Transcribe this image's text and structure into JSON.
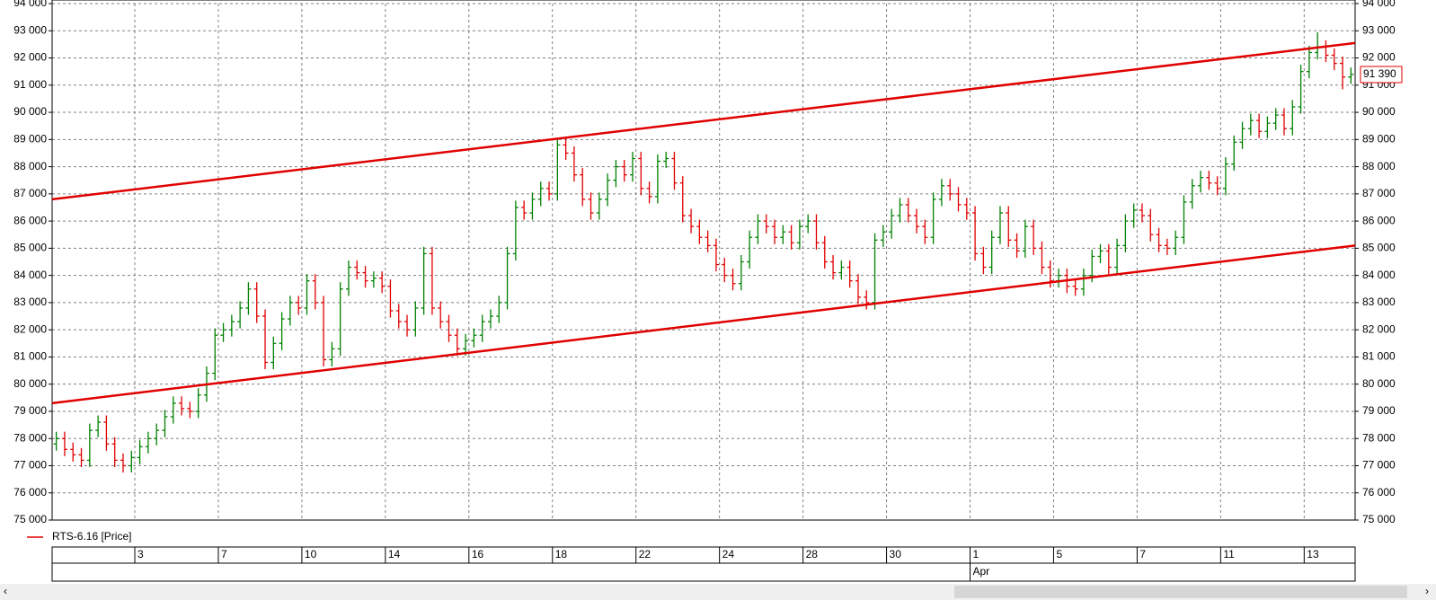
{
  "chart_data": {
    "type": "ohlc",
    "legend": {
      "label": "RTS-6.16 [Price]",
      "color": "#e00000"
    },
    "up_color": "#008000",
    "down_color": "#e00000",
    "grid": true,
    "xlim": [
      -0.5,
      155.5
    ],
    "ylim": [
      75000,
      94000
    ],
    "yticks": [
      {
        "value": 75000,
        "label": "75 000"
      },
      {
        "value": 76000,
        "label": "76 000"
      },
      {
        "value": 77000,
        "label": "77 000"
      },
      {
        "value": 78000,
        "label": "78 000"
      },
      {
        "value": 79000,
        "label": "79 000"
      },
      {
        "value": 80000,
        "label": "80 000"
      },
      {
        "value": 81000,
        "label": "81 000"
      },
      {
        "value": 82000,
        "label": "82 000"
      },
      {
        "value": 83000,
        "label": "83 000"
      },
      {
        "value": 84000,
        "label": "84 000"
      },
      {
        "value": 85000,
        "label": "85 000"
      },
      {
        "value": 86000,
        "label": "86 000"
      },
      {
        "value": 87000,
        "label": "87 000"
      },
      {
        "value": 88000,
        "label": "88 000"
      },
      {
        "value": 89000,
        "label": "89 000"
      },
      {
        "value": 90000,
        "label": "90 000"
      },
      {
        "value": 91000,
        "label": "91 000"
      },
      {
        "value": 92000,
        "label": "92 000"
      },
      {
        "value": 93000,
        "label": "93 000"
      },
      {
        "value": 94000,
        "label": "94 000"
      }
    ],
    "xticks": [
      {
        "value": 9.4,
        "label": "3"
      },
      {
        "value": 19.4,
        "label": "7"
      },
      {
        "value": 29.4,
        "label": "10"
      },
      {
        "value": 39.4,
        "label": "14"
      },
      {
        "value": 49.4,
        "label": "16"
      },
      {
        "value": 59.4,
        "label": "18"
      },
      {
        "value": 69.4,
        "label": "22"
      },
      {
        "value": 79.4,
        "label": "24"
      },
      {
        "value": 89.4,
        "label": "28"
      },
      {
        "value": 99.4,
        "label": "30"
      },
      {
        "value": 109.4,
        "label": "1"
      },
      {
        "value": 119.4,
        "label": "5"
      },
      {
        "value": 129.4,
        "label": "7"
      },
      {
        "value": 139.4,
        "label": "11"
      },
      {
        "value": 149.4,
        "label": "13"
      }
    ],
    "month_ticks": [
      {
        "value": 109.4,
        "label": "Apr"
      }
    ],
    "last_price": {
      "value": 91390,
      "label": "91 390"
    },
    "trend_lines": [
      {
        "color": "#e00000",
        "x": [
          -0.5,
          155.5
        ],
        "y": [
          86800,
          92550
        ]
      },
      {
        "color": "#e00000",
        "x": [
          -0.5,
          155.5
        ],
        "y": [
          79300,
          85100
        ]
      }
    ],
    "ohlc": [
      [
        77800,
        78250,
        77550,
        78000
      ],
      [
        78000,
        78250,
        77350,
        77600
      ],
      [
        77600,
        77850,
        77150,
        77400
      ],
      [
        77400,
        77650,
        76950,
        77200
      ],
      [
        77200,
        78550,
        76950,
        78300
      ],
      [
        78300,
        78850,
        78050,
        78600
      ],
      [
        78600,
        78850,
        77550,
        77800
      ],
      [
        77800,
        78050,
        76950,
        77200
      ],
      [
        77200,
        77450,
        76750,
        77000
      ],
      [
        77000,
        77550,
        76750,
        77300
      ],
      [
        77300,
        77950,
        77050,
        77700
      ],
      [
        77700,
        78250,
        77450,
        78000
      ],
      [
        78000,
        78550,
        77750,
        78300
      ],
      [
        78300,
        79050,
        78050,
        78800
      ],
      [
        78800,
        79550,
        78550,
        79300
      ],
      [
        79300,
        79550,
        78850,
        79100
      ],
      [
        79100,
        79350,
        78750,
        79000
      ],
      [
        79000,
        79850,
        78750,
        79600
      ],
      [
        79600,
        80650,
        79350,
        80400
      ],
      [
        80400,
        82050,
        80150,
        81800
      ],
      [
        81800,
        82250,
        81550,
        82000
      ],
      [
        82000,
        82550,
        81750,
        82300
      ],
      [
        82300,
        83050,
        82050,
        82800
      ],
      [
        82800,
        83750,
        82550,
        83500
      ],
      [
        83500,
        83750,
        82250,
        82500
      ],
      [
        82500,
        82750,
        80550,
        80800
      ],
      [
        80800,
        81750,
        80550,
        81500
      ],
      [
        81500,
        82650,
        81250,
        82400
      ],
      [
        82400,
        83250,
        82150,
        83000
      ],
      [
        83000,
        83250,
        82550,
        82800
      ],
      [
        82800,
        84050,
        82550,
        83800
      ],
      [
        83800,
        84050,
        82750,
        83000
      ],
      [
        83000,
        83250,
        80650,
        80900
      ],
      [
        80900,
        81550,
        80650,
        81300
      ],
      [
        81300,
        83750,
        81050,
        83500
      ],
      [
        83500,
        84550,
        83250,
        84300
      ],
      [
        84300,
        84550,
        83850,
        84100
      ],
      [
        84100,
        84350,
        83550,
        83800
      ],
      [
        83800,
        84150,
        83550,
        83900
      ],
      [
        83900,
        84150,
        83350,
        83600
      ],
      [
        83600,
        83850,
        82450,
        82700
      ],
      [
        82700,
        82950,
        82050,
        82300
      ],
      [
        82300,
        82550,
        81750,
        82000
      ],
      [
        82000,
        83050,
        81750,
        82800
      ],
      [
        82800,
        85050,
        82550,
        84800
      ],
      [
        84800,
        85050,
        82550,
        82800
      ],
      [
        82800,
        83050,
        82050,
        82300
      ],
      [
        82300,
        82550,
        81550,
        81800
      ],
      [
        81800,
        82050,
        81050,
        81300
      ],
      [
        81300,
        81850,
        81050,
        81600
      ],
      [
        81600,
        82050,
        81350,
        81800
      ],
      [
        81800,
        82550,
        81550,
        82300
      ],
      [
        82300,
        82750,
        82050,
        82500
      ],
      [
        82500,
        83250,
        82250,
        83000
      ],
      [
        83000,
        85050,
        82750,
        84800
      ],
      [
        84800,
        86750,
        84550,
        86500
      ],
      [
        86500,
        86750,
        86050,
        86300
      ],
      [
        86300,
        87050,
        86050,
        86800
      ],
      [
        86800,
        87450,
        86550,
        87200
      ],
      [
        87200,
        87450,
        86750,
        87000
      ],
      [
        87000,
        89050,
        86750,
        88800
      ],
      [
        88800,
        89050,
        88250,
        88500
      ],
      [
        88500,
        88750,
        87450,
        87700
      ],
      [
        87700,
        87950,
        86550,
        86800
      ],
      [
        86800,
        87050,
        86050,
        86300
      ],
      [
        86300,
        87050,
        86050,
        86800
      ],
      [
        86800,
        87750,
        86550,
        87500
      ],
      [
        87500,
        88250,
        87250,
        88000
      ],
      [
        88000,
        88250,
        87450,
        87700
      ],
      [
        87700,
        88550,
        87450,
        88300
      ],
      [
        88300,
        88550,
        86950,
        87200
      ],
      [
        87200,
        87450,
        86650,
        86900
      ],
      [
        86900,
        88450,
        86650,
        88200
      ],
      [
        88200,
        88550,
        87950,
        88300
      ],
      [
        88300,
        88550,
        87150,
        87400
      ],
      [
        87400,
        87650,
        85950,
        86200
      ],
      [
        86200,
        86450,
        85550,
        85800
      ],
      [
        85800,
        86050,
        85150,
        85400
      ],
      [
        85400,
        85650,
        84850,
        85100
      ],
      [
        85100,
        85350,
        84150,
        84400
      ],
      [
        84400,
        84650,
        83750,
        84000
      ],
      [
        84000,
        84250,
        83450,
        83700
      ],
      [
        83700,
        84750,
        83450,
        84500
      ],
      [
        84500,
        85650,
        84250,
        85400
      ],
      [
        85400,
        86250,
        85150,
        86000
      ],
      [
        86000,
        86250,
        85550,
        85800
      ],
      [
        85800,
        86050,
        85150,
        85400
      ],
      [
        85400,
        85850,
        85150,
        85600
      ],
      [
        85600,
        85850,
        84950,
        85200
      ],
      [
        85200,
        86050,
        84950,
        85800
      ],
      [
        85800,
        86250,
        85550,
        86000
      ],
      [
        86000,
        86250,
        84950,
        85200
      ],
      [
        85200,
        85450,
        84250,
        84500
      ],
      [
        84500,
        84750,
        83850,
        84100
      ],
      [
        84100,
        84550,
        83850,
        84300
      ],
      [
        84300,
        84550,
        83550,
        83800
      ],
      [
        83800,
        84050,
        82950,
        83200
      ],
      [
        83200,
        83450,
        82750,
        83000
      ],
      [
        83000,
        85550,
        82750,
        85300
      ],
      [
        85300,
        85850,
        85050,
        85600
      ],
      [
        85600,
        86450,
        85350,
        86200
      ],
      [
        86200,
        86850,
        85950,
        86600
      ],
      [
        86600,
        86850,
        85950,
        86200
      ],
      [
        86200,
        86450,
        85550,
        85800
      ],
      [
        85800,
        86050,
        85150,
        85400
      ],
      [
        85400,
        87050,
        85150,
        86800
      ],
      [
        86800,
        87550,
        86550,
        87300
      ],
      [
        87300,
        87550,
        86750,
        87000
      ],
      [
        87000,
        87250,
        86350,
        86600
      ],
      [
        86600,
        86850,
        86050,
        86300
      ],
      [
        86300,
        86550,
        84550,
        84800
      ],
      [
        84800,
        85050,
        84050,
        84300
      ],
      [
        84300,
        85650,
        84050,
        85400
      ],
      [
        85400,
        86550,
        85150,
        86300
      ],
      [
        86300,
        86550,
        85050,
        85300
      ],
      [
        85300,
        85550,
        84650,
        84900
      ],
      [
        84900,
        86050,
        84650,
        85800
      ],
      [
        85800,
        86050,
        84750,
        85000
      ],
      [
        85000,
        85250,
        84050,
        84300
      ],
      [
        84300,
        84550,
        83550,
        83800
      ],
      [
        83800,
        84250,
        83550,
        84000
      ],
      [
        84000,
        84250,
        83350,
        83600
      ],
      [
        83600,
        83850,
        83250,
        83500
      ],
      [
        83500,
        84250,
        83250,
        84000
      ],
      [
        84000,
        84950,
        83750,
        84700
      ],
      [
        84700,
        85150,
        84450,
        84900
      ],
      [
        84900,
        85150,
        84050,
        84300
      ],
      [
        84300,
        85350,
        84050,
        85100
      ],
      [
        85100,
        86250,
        84850,
        86000
      ],
      [
        86000,
        86650,
        85750,
        86400
      ],
      [
        86400,
        86650,
        85950,
        86200
      ],
      [
        86200,
        86450,
        85250,
        85500
      ],
      [
        85500,
        85750,
        84850,
        85100
      ],
      [
        85100,
        85350,
        84750,
        85000
      ],
      [
        85000,
        85650,
        84750,
        85400
      ],
      [
        85400,
        86950,
        85150,
        86700
      ],
      [
        86700,
        87550,
        86450,
        87300
      ],
      [
        87300,
        87850,
        87050,
        87600
      ],
      [
        87600,
        87850,
        87150,
        87400
      ],
      [
        87400,
        87650,
        86950,
        87200
      ],
      [
        87200,
        88350,
        86950,
        88100
      ],
      [
        88100,
        89150,
        87850,
        88900
      ],
      [
        88900,
        89650,
        88650,
        89400
      ],
      [
        89400,
        89950,
        89150,
        89700
      ],
      [
        89700,
        89950,
        89050,
        89300
      ],
      [
        89300,
        89850,
        89050,
        89600
      ],
      [
        89600,
        90150,
        89350,
        89900
      ],
      [
        89900,
        90150,
        89150,
        89400
      ],
      [
        89400,
        90450,
        89150,
        90200
      ],
      [
        90200,
        91750,
        89950,
        91500
      ],
      [
        91500,
        92450,
        91250,
        92200
      ],
      [
        92200,
        92950,
        91950,
        92400
      ],
      [
        92400,
        92650,
        91850,
        92100
      ],
      [
        92100,
        92350,
        91550,
        91800
      ],
      [
        91800,
        92050,
        90850,
        91300
      ],
      [
        91300,
        91650,
        91050,
        91390
      ]
    ]
  }
}
